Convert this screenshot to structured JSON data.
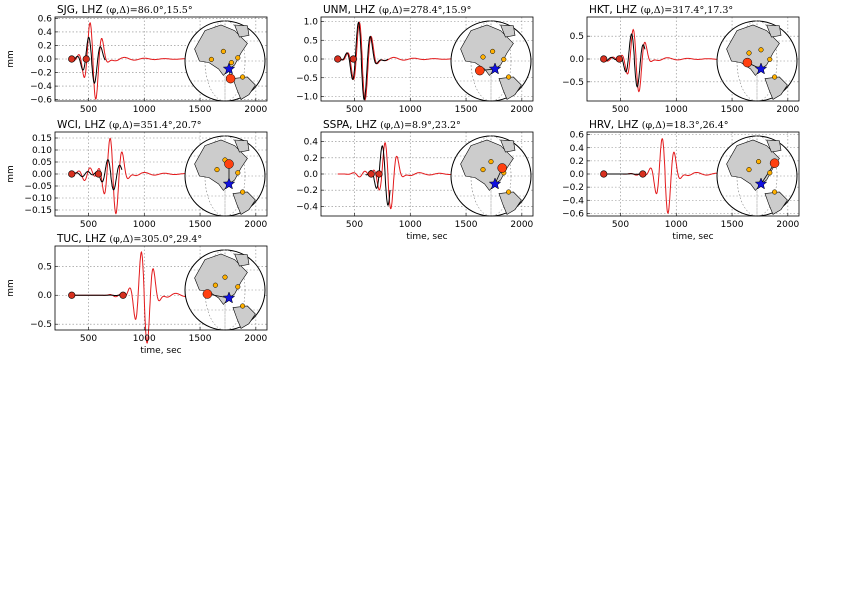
{
  "colors": {
    "synthetic": "#e31a1c",
    "observed": "#000000",
    "marker": "#d7301f",
    "grid": "#888888",
    "land": "#cccccc",
    "station": "#ffb000",
    "source": "#1010e0",
    "target": "#ff4010"
  },
  "chart_data": [
    {
      "type": "line",
      "title": "SJG, LHZ ",
      "title_math": "(φ,Δ)=86.0°,15.5°",
      "ylabel": "mm",
      "xlabel": "",
      "xlim": [
        200,
        2100
      ],
      "ylim": [
        -0.62,
        0.62
      ],
      "xticks": [
        500,
        1000,
        1500,
        2000
      ],
      "yticks": [
        -0.6,
        -0.4,
        -0.2,
        0.0,
        0.2,
        0.4,
        0.6
      ],
      "ytick_labels": [
        "−0.6",
        "−0.4",
        "−0.2",
        "0.0",
        "0.2",
        "0.4",
        "0.6"
      ],
      "grid": true,
      "markers_x": [
        350,
        480
      ],
      "obs_range": [
        350,
        650
      ],
      "syn_range": [
        350,
        1550
      ],
      "wave": {
        "t0": 540,
        "amp": 0.58,
        "period": 110,
        "width": 65,
        "precursor": 0.06
      },
      "obs_scale": 0.6,
      "obs_shift": -12,
      "globe": {
        "target": [
          0.57,
          0.72
        ],
        "stations": [
          [
            0.33,
            0.48
          ],
          [
            0.48,
            0.38
          ],
          [
            0.58,
            0.52
          ],
          [
            0.66,
            0.46
          ],
          [
            0.72,
            0.7
          ]
        ]
      }
    },
    {
      "type": "line",
      "title": "UNM, LHZ ",
      "title_math": "(φ,Δ)=278.4°,15.9°",
      "ylabel": "",
      "xlabel": "",
      "xlim": [
        200,
        2100
      ],
      "ylim": [
        -1.12,
        1.12
      ],
      "xticks": [
        500,
        1000,
        1500,
        2000
      ],
      "yticks": [
        -1.0,
        -0.5,
        0.0,
        0.5,
        1.0
      ],
      "ytick_labels": [
        "−1.0",
        "−0.5",
        "0.0",
        "0.5",
        "1.0"
      ],
      "grid": true,
      "markers_x": [
        350,
        490
      ],
      "obs_range": [
        350,
        800
      ],
      "syn_range": [
        350,
        1550
      ],
      "wave": {
        "t0": 570,
        "amp": 1.05,
        "period": 110,
        "width": 70,
        "precursor": 0.05
      },
      "obs_scale": 1.0,
      "obs_shift": -8,
      "globe": {
        "target": [
          0.36,
          0.62
        ],
        "stations": [
          [
            0.4,
            0.45
          ],
          [
            0.52,
            0.38
          ],
          [
            0.66,
            0.48
          ],
          [
            0.72,
            0.7
          ]
        ]
      }
    },
    {
      "type": "line",
      "title": "HKT, LHZ ",
      "title_math": "(φ,Δ)=317.4°,17.3°",
      "ylabel": "",
      "xlabel": "",
      "xlim": [
        200,
        2100
      ],
      "ylim": [
        -0.92,
        0.92
      ],
      "xticks": [
        500,
        1000,
        1500,
        2000
      ],
      "yticks": [
        -0.5,
        0.0,
        0.5
      ],
      "ytick_labels": [
        "−0.5",
        "0.0",
        "0.5"
      ],
      "grid": true,
      "markers_x": [
        350,
        490
      ],
      "obs_range": [
        350,
        720
      ],
      "syn_range": [
        350,
        1550
      ],
      "wave": {
        "t0": 640,
        "amp": 0.7,
        "period": 110,
        "width": 65,
        "precursor": 0.05
      },
      "obs_scale": 0.85,
      "obs_shift": -15,
      "globe": {
        "target": [
          0.38,
          0.52
        ],
        "stations": [
          [
            0.4,
            0.4
          ],
          [
            0.55,
            0.36
          ],
          [
            0.66,
            0.48
          ],
          [
            0.72,
            0.7
          ]
        ]
      }
    },
    {
      "type": "line",
      "title": "WCI, LHZ ",
      "title_math": "(φ,Δ)=351.4°,20.7°",
      "ylabel": "mm",
      "xlabel": "",
      "xlim": [
        200,
        2100
      ],
      "ylim": [
        -0.175,
        0.175
      ],
      "xticks": [
        500,
        1000,
        1500,
        2000
      ],
      "yticks": [
        -0.15,
        -0.1,
        -0.05,
        0.0,
        0.05,
        0.1,
        0.15
      ],
      "ytick_labels": [
        "−0.15",
        "−0.10",
        "−0.05",
        "0.00",
        "0.05",
        "0.10",
        "0.15"
      ],
      "grid": true,
      "markers_x": [
        350,
        590
      ],
      "obs_range": [
        350,
        800
      ],
      "syn_range": [
        350,
        1600
      ],
      "wave": {
        "t0": 720,
        "amp": 0.16,
        "period": 110,
        "width": 70,
        "precursor": 0.03
      },
      "obs_scale": 0.4,
      "obs_shift": -20,
      "globe": {
        "target": [
          0.55,
          0.35
        ],
        "stations": [
          [
            0.4,
            0.42
          ],
          [
            0.5,
            0.3
          ],
          [
            0.66,
            0.46
          ],
          [
            0.72,
            0.7
          ]
        ]
      }
    },
    {
      "type": "line",
      "title": "SSPA, LHZ ",
      "title_math": "(φ,Δ)=8.9°,23.2°",
      "ylabel": "",
      "xlabel": "time, sec",
      "xlim": [
        200,
        2100
      ],
      "ylim": [
        -0.52,
        0.52
      ],
      "xticks": [
        500,
        1000,
        1500,
        2000
      ],
      "yticks": [
        -0.4,
        -0.2,
        0.0,
        0.2,
        0.4
      ],
      "ytick_labels": [
        "−0.4",
        "−0.2",
        "0.0",
        "0.2",
        "0.4"
      ],
      "grid": true,
      "markers_x": [
        650,
        720
      ],
      "obs_range": [
        600,
        820
      ],
      "syn_range": [
        350,
        1600
      ],
      "wave": {
        "t0": 800,
        "amp": 0.42,
        "period": 110,
        "width": 65,
        "precursor": 0.04
      },
      "obs_scale": 0.9,
      "obs_shift": -25,
      "globe": {
        "target": [
          0.64,
          0.4
        ],
        "stations": [
          [
            0.4,
            0.42
          ],
          [
            0.5,
            0.32
          ],
          [
            0.66,
            0.46
          ],
          [
            0.72,
            0.7
          ]
        ]
      }
    },
    {
      "type": "line",
      "title": "HRV, LHZ ",
      "title_math": "(φ,Δ)=18.3°,26.4°",
      "ylabel": "",
      "xlabel": "time, sec",
      "xlim": [
        200,
        2100
      ],
      "ylim": [
        -0.64,
        0.64
      ],
      "xticks": [
        500,
        1000,
        1500,
        2000
      ],
      "yticks": [
        -0.6,
        -0.4,
        -0.2,
        0.0,
        0.2,
        0.4,
        0.6
      ],
      "ytick_labels": [
        "−0.6",
        "−0.4",
        "−0.2",
        "0.0",
        "0.2",
        "0.4",
        "0.6"
      ],
      "grid": true,
      "markers_x": [
        350,
        700
      ],
      "obs_range": [
        350,
        720
      ],
      "syn_range": [
        350,
        1600
      ],
      "wave": {
        "t0": 900,
        "amp": 0.58,
        "period": 110,
        "width": 70,
        "precursor": 0.02
      },
      "obs_scale": 0.3,
      "obs_shift": 0,
      "globe": {
        "target": [
          0.72,
          0.34
        ],
        "stations": [
          [
            0.4,
            0.42
          ],
          [
            0.52,
            0.32
          ],
          [
            0.66,
            0.46
          ],
          [
            0.72,
            0.7
          ]
        ]
      }
    },
    {
      "type": "line",
      "title": "TUC, LHZ ",
      "title_math": "(φ,Δ)=305.0°,29.4°",
      "ylabel": "mm",
      "xlabel": "time, sec",
      "xlim": [
        200,
        2100
      ],
      "ylim": [
        -0.6,
        0.85
      ],
      "xticks": [
        500,
        1000,
        1500,
        2000
      ],
      "yticks": [
        -0.5,
        0.0,
        0.5
      ],
      "ytick_labels": [
        "−0.5",
        "0.0",
        "0.5"
      ],
      "grid": true,
      "markers_x": [
        350,
        810
      ],
      "obs_range": [
        350,
        810
      ],
      "syn_range": [
        350,
        1600
      ],
      "wave": {
        "t0": 1000,
        "amp": 0.8,
        "period": 110,
        "width": 70,
        "precursor": 0.03
      },
      "obs_scale": 0.2,
      "obs_shift": 0,
      "globe": {
        "target": [
          0.28,
          0.55
        ],
        "stations": [
          [
            0.38,
            0.44
          ],
          [
            0.5,
            0.34
          ],
          [
            0.66,
            0.46
          ],
          [
            0.72,
            0.7
          ]
        ]
      }
    }
  ]
}
